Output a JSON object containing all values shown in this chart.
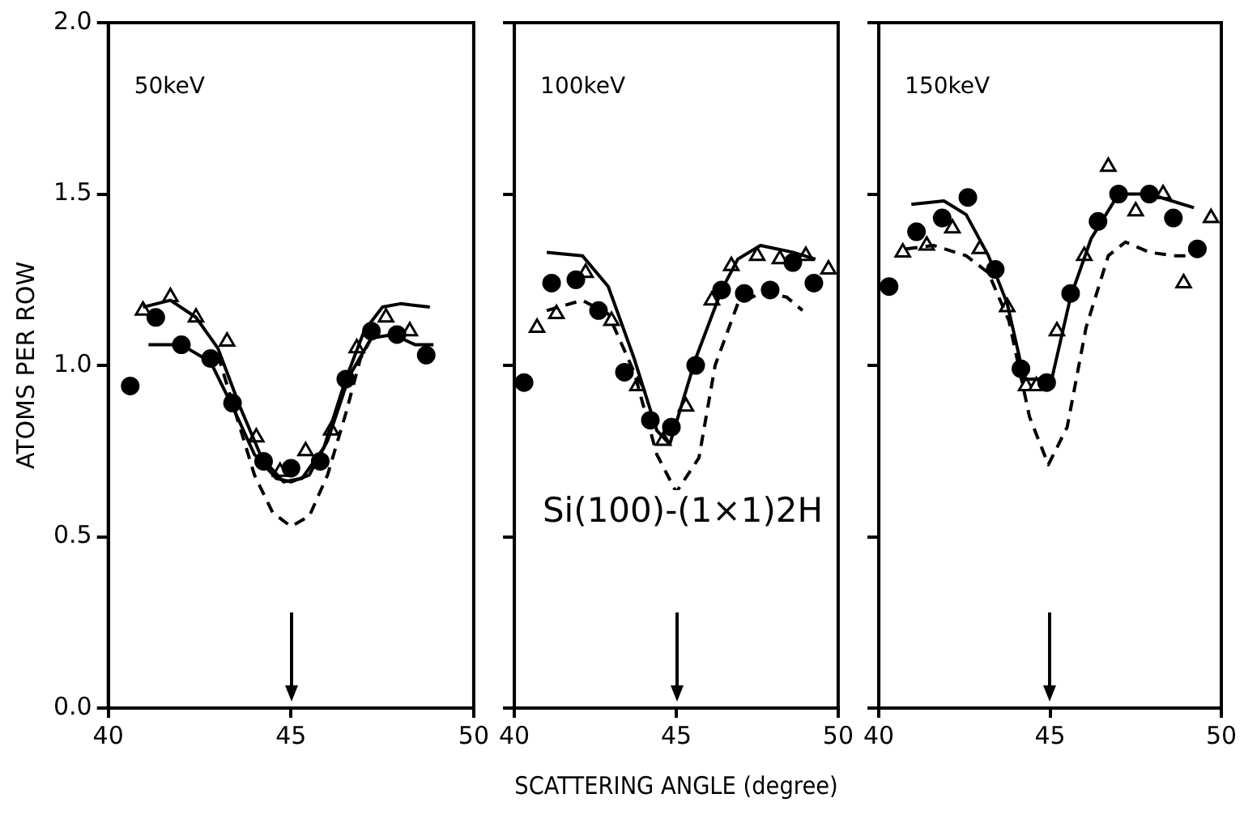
{
  "chart_data": [
    {
      "type": "scatter",
      "ylabel": "ATOMS PER ROW",
      "annotations": [
        "50keV"
      ],
      "xlim": [
        40,
        50
      ],
      "xticks": [
        40,
        45,
        50
      ],
      "ylim": [
        0,
        2
      ],
      "yticks": [
        {
          "value": 0,
          "label": "0.0"
        },
        0.5,
        {
          "value": 1,
          "label": "1.0"
        },
        1.5,
        {
          "value": 2,
          "label": "2.0"
        }
      ],
      "ref_lines": [
        {
          "axis": "x",
          "value": 45
        }
      ],
      "series": [
        {
          "type": "line",
          "color": "#000000",
          "line_style": "solid",
          "marker": "none",
          "x": [
            40.95,
            41.7,
            42.4,
            43.0,
            43.6,
            44.2,
            44.8,
            45.3,
            45.9,
            46.5,
            47.0,
            47.5,
            48.0,
            48.8
          ],
          "values": [
            1.17,
            1.19,
            1.14,
            1.05,
            0.88,
            0.73,
            0.66,
            0.67,
            0.76,
            0.96,
            1.1,
            1.17,
            1.18,
            1.17
          ]
        },
        {
          "type": "line",
          "color": "#000000",
          "line_style": "solid",
          "marker": "none",
          "x": [
            41.1,
            42.0,
            42.8,
            43.4,
            44.0,
            44.6,
            45.0,
            45.5,
            46.0,
            46.6,
            47.2,
            47.8,
            48.4,
            48.9
          ],
          "values": [
            1.06,
            1.06,
            1.01,
            0.88,
            0.74,
            0.67,
            0.66,
            0.68,
            0.78,
            0.97,
            1.08,
            1.09,
            1.06,
            1.06
          ]
        },
        {
          "type": "line",
          "color": "#000000",
          "line_style": "dashed",
          "marker": "none",
          "x": [
            43.0,
            43.6,
            44.0,
            44.5,
            45.0,
            45.5,
            46.0,
            46.5,
            46.9,
            47.3
          ],
          "values": [
            1.03,
            0.82,
            0.68,
            0.57,
            0.53,
            0.56,
            0.68,
            0.86,
            1.02,
            1.1
          ]
        },
        {
          "type": "scatter",
          "color": "#000000",
          "marker": "circle",
          "x": [
            40.6,
            41.3,
            42.0,
            42.8,
            43.4,
            44.25,
            45.0,
            45.8,
            46.5,
            47.2,
            47.9,
            48.7
          ],
          "values": [
            0.94,
            1.14,
            1.06,
            1.02,
            0.89,
            0.72,
            0.7,
            0.72,
            0.96,
            1.1,
            1.09,
            1.03
          ]
        },
        {
          "type": "scatter",
          "color": "#000000",
          "marker": "triangle",
          "x": [
            40.95,
            41.7,
            42.4,
            43.25,
            44.05,
            44.7,
            45.4,
            46.1,
            46.8,
            47.6,
            48.25
          ],
          "values": [
            1.16,
            1.2,
            1.14,
            1.07,
            0.79,
            0.69,
            0.75,
            0.81,
            1.05,
            1.14,
            1.1
          ]
        }
      ]
    },
    {
      "type": "scatter",
      "xlabel": "SCATTERING ANGLE (degree)",
      "annotations": [
        "100keV",
        "Si(100)-(1×1)2H"
      ],
      "tick_labels": "x",
      "xlim": [
        40,
        50
      ],
      "xticks": [
        40,
        45,
        50
      ],
      "ylim": [
        0,
        2
      ],
      "yticks": [
        0,
        0.5,
        1,
        1.5,
        2
      ],
      "ref_lines": [
        {
          "axis": "x",
          "value": 45
        }
      ],
      "series": [
        {
          "type": "line",
          "color": "#000000",
          "line_style": "solid",
          "marker": "none",
          "x": [
            41.0,
            42.1,
            42.9,
            43.7,
            44.4,
            44.8,
            45.6,
            46.4,
            46.9,
            47.6,
            48.6,
            49.3
          ],
          "values": [
            1.33,
            1.32,
            1.23,
            1.02,
            0.81,
            0.77,
            1.02,
            1.22,
            1.31,
            1.35,
            1.33,
            1.31
          ]
        },
        {
          "type": "line",
          "color": "#000000",
          "line_style": "dashed",
          "marker": "none",
          "x": [
            41.0,
            42.1,
            42.9,
            43.7,
            44.4,
            45.0,
            45.7,
            46.2,
            46.9,
            47.6,
            48.4,
            48.9
          ],
          "values": [
            1.16,
            1.19,
            1.15,
            0.98,
            0.74,
            0.63,
            0.73,
            1.0,
            1.18,
            1.21,
            1.2,
            1.16
          ]
        },
        {
          "type": "scatter",
          "color": "#000000",
          "marker": "circle",
          "x": [
            40.3,
            41.15,
            41.9,
            42.6,
            43.4,
            44.2,
            44.85,
            45.6,
            46.4,
            47.1,
            47.9,
            48.6,
            49.25
          ],
          "values": [
            0.95,
            1.24,
            1.25,
            1.16,
            0.98,
            0.84,
            0.82,
            1.0,
            1.22,
            1.21,
            1.22,
            1.3,
            1.24
          ]
        },
        {
          "type": "scatter",
          "color": "#000000",
          "marker": "triangle",
          "x": [
            40.7,
            41.3,
            42.2,
            43.0,
            43.8,
            44.6,
            45.3,
            46.1,
            46.7,
            47.5,
            48.2,
            49.0,
            49.7
          ],
          "values": [
            1.11,
            1.15,
            1.27,
            1.13,
            0.94,
            0.78,
            0.88,
            1.19,
            1.29,
            1.32,
            1.31,
            1.32,
            1.28
          ]
        }
      ]
    },
    {
      "type": "scatter",
      "annotations": [
        "150keV"
      ],
      "tick_labels": "x",
      "xlim": [
        40,
        50
      ],
      "xticks": [
        40,
        45,
        50
      ],
      "ylim": [
        0,
        2
      ],
      "yticks": [
        0,
        0.5,
        1,
        1.5,
        2
      ],
      "ref_lines": [
        {
          "axis": "x",
          "value": 45
        }
      ],
      "series": [
        {
          "type": "line",
          "color": "#000000",
          "line_style": "solid",
          "marker": "none",
          "x": [
            40.95,
            41.9,
            42.55,
            43.2,
            43.75,
            44.25,
            45.05,
            45.6,
            46.2,
            47.0,
            47.9,
            49.2
          ],
          "values": [
            1.47,
            1.48,
            1.44,
            1.32,
            1.18,
            0.96,
            0.96,
            1.2,
            1.37,
            1.5,
            1.5,
            1.46
          ]
        },
        {
          "type": "line",
          "color": "#000000",
          "line_style": "dashed",
          "marker": "none",
          "x": [
            40.8,
            41.6,
            42.55,
            43.2,
            43.8,
            44.4,
            44.95,
            45.5,
            46.05,
            46.7,
            47.2,
            47.9,
            48.6,
            49.3
          ],
          "values": [
            1.34,
            1.35,
            1.32,
            1.27,
            1.13,
            0.85,
            0.71,
            0.82,
            1.11,
            1.32,
            1.36,
            1.33,
            1.32,
            1.32
          ]
        },
        {
          "type": "scatter",
          "color": "#000000",
          "marker": "circle",
          "x": [
            40.3,
            41.1,
            41.85,
            42.6,
            43.4,
            44.15,
            44.9,
            45.6,
            46.4,
            47.0,
            47.9,
            48.6,
            49.3
          ],
          "values": [
            1.23,
            1.39,
            1.43,
            1.49,
            1.28,
            0.99,
            0.95,
            1.21,
            1.42,
            1.5,
            1.5,
            1.43,
            1.34
          ]
        },
        {
          "type": "scatter",
          "color": "#000000",
          "marker": "triangle",
          "x": [
            40.7,
            41.4,
            42.15,
            42.95,
            43.75,
            44.3,
            44.6,
            45.2,
            46.0,
            46.7,
            47.5,
            48.3,
            48.9,
            49.7
          ],
          "values": [
            1.33,
            1.35,
            1.4,
            1.34,
            1.17,
            0.94,
            0.94,
            1.1,
            1.32,
            1.58,
            1.45,
            1.5,
            1.24,
            1.43
          ]
        }
      ]
    }
  ]
}
